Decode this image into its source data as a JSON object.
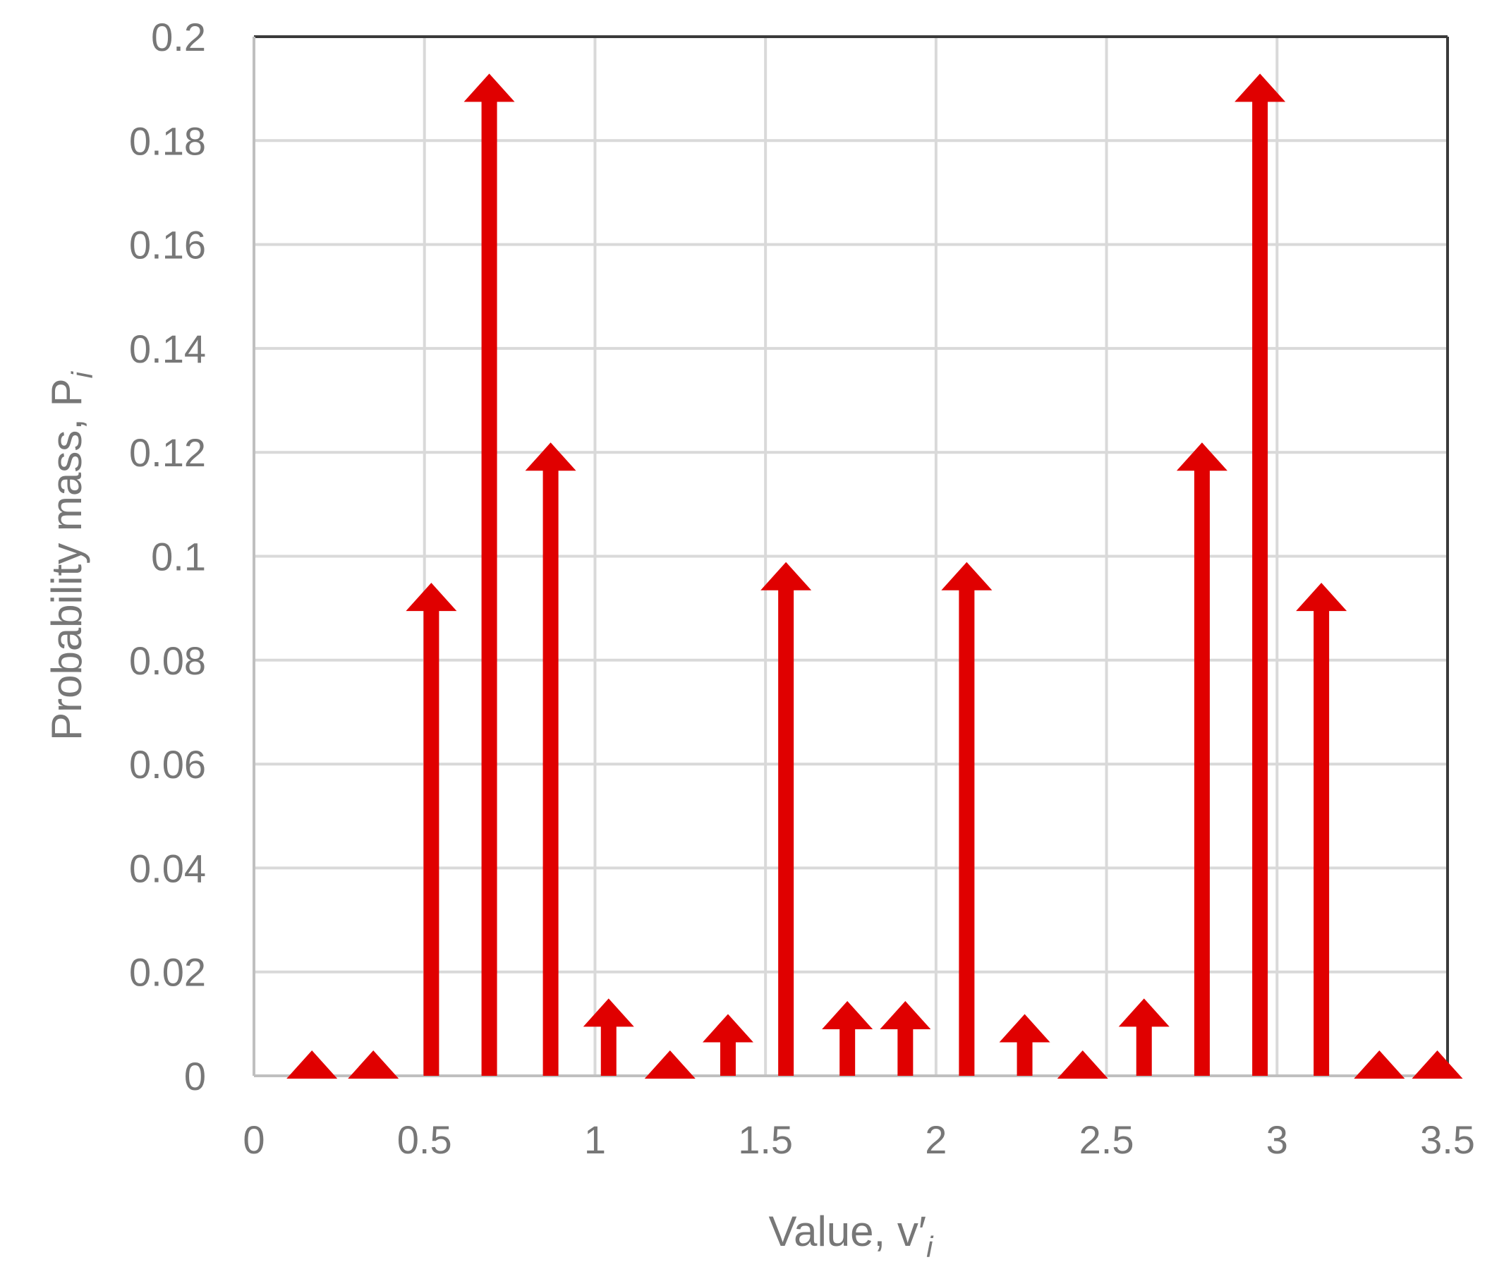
{
  "chart_data": {
    "type": "bar",
    "mark_style": "arrow",
    "xlabel": "Value, v′",
    "xlabel_subscript": "i",
    "ylabel": "Probability mass, P",
    "ylabel_subscript": "i",
    "xlim": [
      0,
      3.5
    ],
    "ylim": [
      0,
      0.2
    ],
    "xticks": [
      0,
      0.5,
      1,
      1.5,
      2,
      2.5,
      3,
      3.5
    ],
    "xtick_labels": [
      "0",
      "0.5",
      "1",
      "1.5",
      "2",
      "2.5",
      "3",
      "3.5"
    ],
    "yticks": [
      0,
      0.02,
      0.04,
      0.06,
      0.08,
      0.1,
      0.12,
      0.14,
      0.16,
      0.18,
      0.2
    ],
    "ytick_labels": [
      "0",
      "0.02",
      "0.04",
      "0.06",
      "0.08",
      "0.1",
      "0.12",
      "0.14",
      "0.16",
      "0.18",
      "0.2"
    ],
    "grid": true,
    "color": "#e00000",
    "points": [
      {
        "x": 0.17,
        "y": 0.0
      },
      {
        "x": 0.35,
        "y": 0.0
      },
      {
        "x": 0.52,
        "y": 0.09
      },
      {
        "x": 0.69,
        "y": 0.188
      },
      {
        "x": 0.87,
        "y": 0.117
      },
      {
        "x": 1.04,
        "y": 0.01
      },
      {
        "x": 1.22,
        "y": 0.0
      },
      {
        "x": 1.39,
        "y": 0.007
      },
      {
        "x": 1.56,
        "y": 0.094
      },
      {
        "x": 1.74,
        "y": 0.0095
      },
      {
        "x": 1.91,
        "y": 0.0095
      },
      {
        "x": 2.09,
        "y": 0.094
      },
      {
        "x": 2.26,
        "y": 0.007
      },
      {
        "x": 2.43,
        "y": 0.0
      },
      {
        "x": 2.61,
        "y": 0.01
      },
      {
        "x": 2.78,
        "y": 0.117
      },
      {
        "x": 2.95,
        "y": 0.188
      },
      {
        "x": 3.13,
        "y": 0.09
      },
      {
        "x": 3.3,
        "y": 0.0
      },
      {
        "x": 3.47,
        "y": 0.0
      }
    ]
  }
}
